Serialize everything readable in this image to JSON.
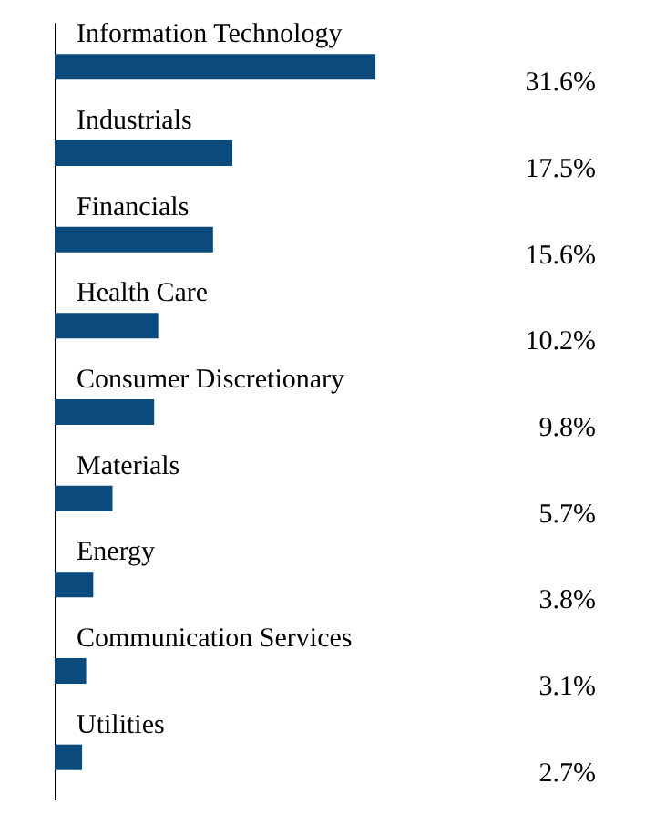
{
  "chart_data": {
    "type": "bar",
    "orientation": "horizontal",
    "categories": [
      "Information Technology",
      "Industrials",
      "Financials",
      "Health Care",
      "Consumer Discretionary",
      "Materials",
      "Energy",
      "Communication Services",
      "Utilities"
    ],
    "values": [
      31.6,
      17.5,
      15.6,
      10.2,
      9.8,
      5.7,
      3.8,
      3.1,
      2.7
    ],
    "value_labels": [
      "31.6%",
      "17.5%",
      "15.6%",
      "10.2%",
      "9.8%",
      "5.7%",
      "3.8%",
      "3.1%",
      "2.7%"
    ],
    "color": "#0b4a7d"
  }
}
